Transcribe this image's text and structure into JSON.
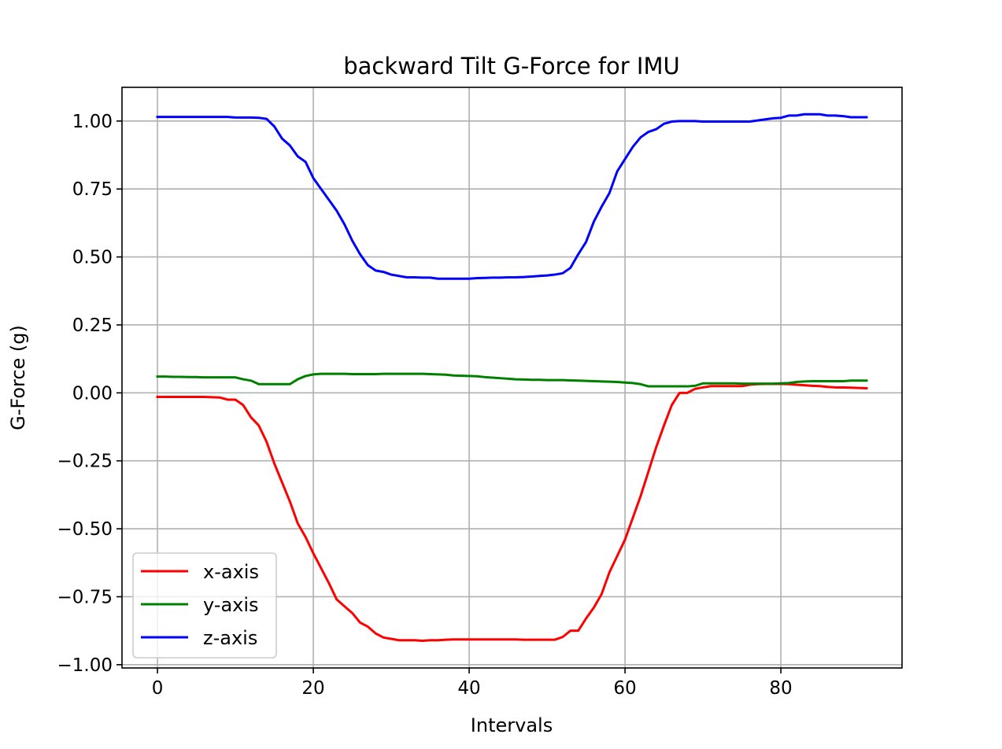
{
  "chart_data": {
    "type": "line",
    "title": "backward Tilt G-Force for IMU",
    "xlabel": "Intervals",
    "ylabel": "G-Force (g)",
    "xlim": [
      -4.55,
      95.55
    ],
    "ylim": [
      -1.012,
      1.124
    ],
    "xticks": [
      0,
      20,
      40,
      60,
      80
    ],
    "xtick_labels": [
      "0",
      "20",
      "40",
      "60",
      "80"
    ],
    "yticks": [
      1.0,
      0.75,
      0.5,
      0.25,
      0.0,
      -0.25,
      -0.5,
      -0.75,
      -1.0
    ],
    "ytick_labels": [
      "1.00",
      "0.75",
      "0.50",
      "0.25",
      "0.00",
      "−0.25",
      "−0.50",
      "−0.75",
      "−1.00"
    ],
    "grid": true,
    "legend_position": "lower-left",
    "x": [
      0,
      1,
      2,
      3,
      4,
      5,
      6,
      7,
      8,
      9,
      10,
      11,
      12,
      13,
      14,
      15,
      16,
      17,
      18,
      19,
      20,
      21,
      22,
      23,
      24,
      25,
      26,
      27,
      28,
      29,
      30,
      31,
      32,
      33,
      34,
      35,
      36,
      37,
      38,
      39,
      40,
      41,
      42,
      43,
      44,
      45,
      46,
      47,
      48,
      49,
      50,
      51,
      52,
      53,
      54,
      55,
      56,
      57,
      58,
      59,
      60,
      61,
      62,
      63,
      64,
      65,
      66,
      67,
      68,
      69,
      70,
      71,
      72,
      73,
      74,
      75,
      76,
      77,
      78,
      79,
      80,
      81,
      82,
      83,
      84,
      85,
      86,
      87,
      88,
      89,
      90,
      91
    ],
    "series": [
      {
        "name": "x-axis",
        "color": "#ff0000",
        "values": [
          -0.015,
          -0.015,
          -0.015,
          -0.015,
          -0.015,
          -0.015,
          -0.015,
          -0.016,
          -0.017,
          -0.025,
          -0.025,
          -0.045,
          -0.09,
          -0.12,
          -0.18,
          -0.26,
          -0.33,
          -0.4,
          -0.48,
          -0.53,
          -0.59,
          -0.645,
          -0.7,
          -0.76,
          -0.785,
          -0.81,
          -0.845,
          -0.86,
          -0.885,
          -0.9,
          -0.905,
          -0.91,
          -0.91,
          -0.91,
          -0.912,
          -0.91,
          -0.91,
          -0.908,
          -0.907,
          -0.907,
          -0.907,
          -0.907,
          -0.907,
          -0.907,
          -0.907,
          -0.907,
          -0.907,
          -0.908,
          -0.908,
          -0.908,
          -0.908,
          -0.908,
          -0.898,
          -0.875,
          -0.875,
          -0.83,
          -0.79,
          -0.74,
          -0.66,
          -0.6,
          -0.54,
          -0.46,
          -0.38,
          -0.29,
          -0.2,
          -0.12,
          -0.045,
          0.0,
          0.0,
          0.015,
          0.02,
          0.025,
          0.025,
          0.025,
          0.025,
          0.025,
          0.03,
          0.032,
          0.033,
          0.033,
          0.033,
          0.032,
          0.03,
          0.028,
          0.026,
          0.025,
          0.022,
          0.02,
          0.02,
          0.019,
          0.018,
          0.017
        ]
      },
      {
        "name": "y-axis",
        "color": "#008000",
        "values": [
          0.06,
          0.06,
          0.059,
          0.059,
          0.058,
          0.058,
          0.057,
          0.057,
          0.057,
          0.057,
          0.057,
          0.05,
          0.045,
          0.032,
          0.032,
          0.032,
          0.032,
          0.032,
          0.05,
          0.062,
          0.068,
          0.07,
          0.07,
          0.07,
          0.07,
          0.069,
          0.069,
          0.069,
          0.069,
          0.07,
          0.07,
          0.07,
          0.07,
          0.07,
          0.07,
          0.069,
          0.068,
          0.067,
          0.064,
          0.063,
          0.062,
          0.061,
          0.058,
          0.056,
          0.054,
          0.052,
          0.05,
          0.049,
          0.048,
          0.048,
          0.047,
          0.047,
          0.047,
          0.046,
          0.045,
          0.044,
          0.043,
          0.042,
          0.041,
          0.04,
          0.038,
          0.036,
          0.032,
          0.024,
          0.024,
          0.024,
          0.024,
          0.024,
          0.024,
          0.026,
          0.035,
          0.035,
          0.035,
          0.035,
          0.035,
          0.034,
          0.034,
          0.034,
          0.034,
          0.034,
          0.035,
          0.036,
          0.04,
          0.042,
          0.043,
          0.043,
          0.043,
          0.043,
          0.043,
          0.045,
          0.045,
          0.045
        ]
      },
      {
        "name": "z-axis",
        "color": "#0000ff",
        "values": [
          1.015,
          1.015,
          1.015,
          1.015,
          1.015,
          1.015,
          1.015,
          1.015,
          1.015,
          1.015,
          1.013,
          1.013,
          1.013,
          1.012,
          1.008,
          0.98,
          0.935,
          0.91,
          0.87,
          0.85,
          0.79,
          0.75,
          0.71,
          0.67,
          0.62,
          0.56,
          0.51,
          0.47,
          0.45,
          0.445,
          0.435,
          0.43,
          0.425,
          0.425,
          0.424,
          0.424,
          0.42,
          0.42,
          0.42,
          0.42,
          0.42,
          0.422,
          0.423,
          0.424,
          0.424,
          0.425,
          0.425,
          0.426,
          0.428,
          0.43,
          0.432,
          0.435,
          0.44,
          0.46,
          0.51,
          0.555,
          0.63,
          0.685,
          0.735,
          0.815,
          0.86,
          0.905,
          0.94,
          0.96,
          0.97,
          0.99,
          0.998,
          1.0,
          1.0,
          1.0,
          0.998,
          0.998,
          0.998,
          0.998,
          0.998,
          0.998,
          0.998,
          1.002,
          1.006,
          1.01,
          1.012,
          1.02,
          1.02,
          1.025,
          1.025,
          1.025,
          1.02,
          1.02,
          1.018,
          1.014,
          1.014,
          1.014
        ]
      }
    ]
  }
}
